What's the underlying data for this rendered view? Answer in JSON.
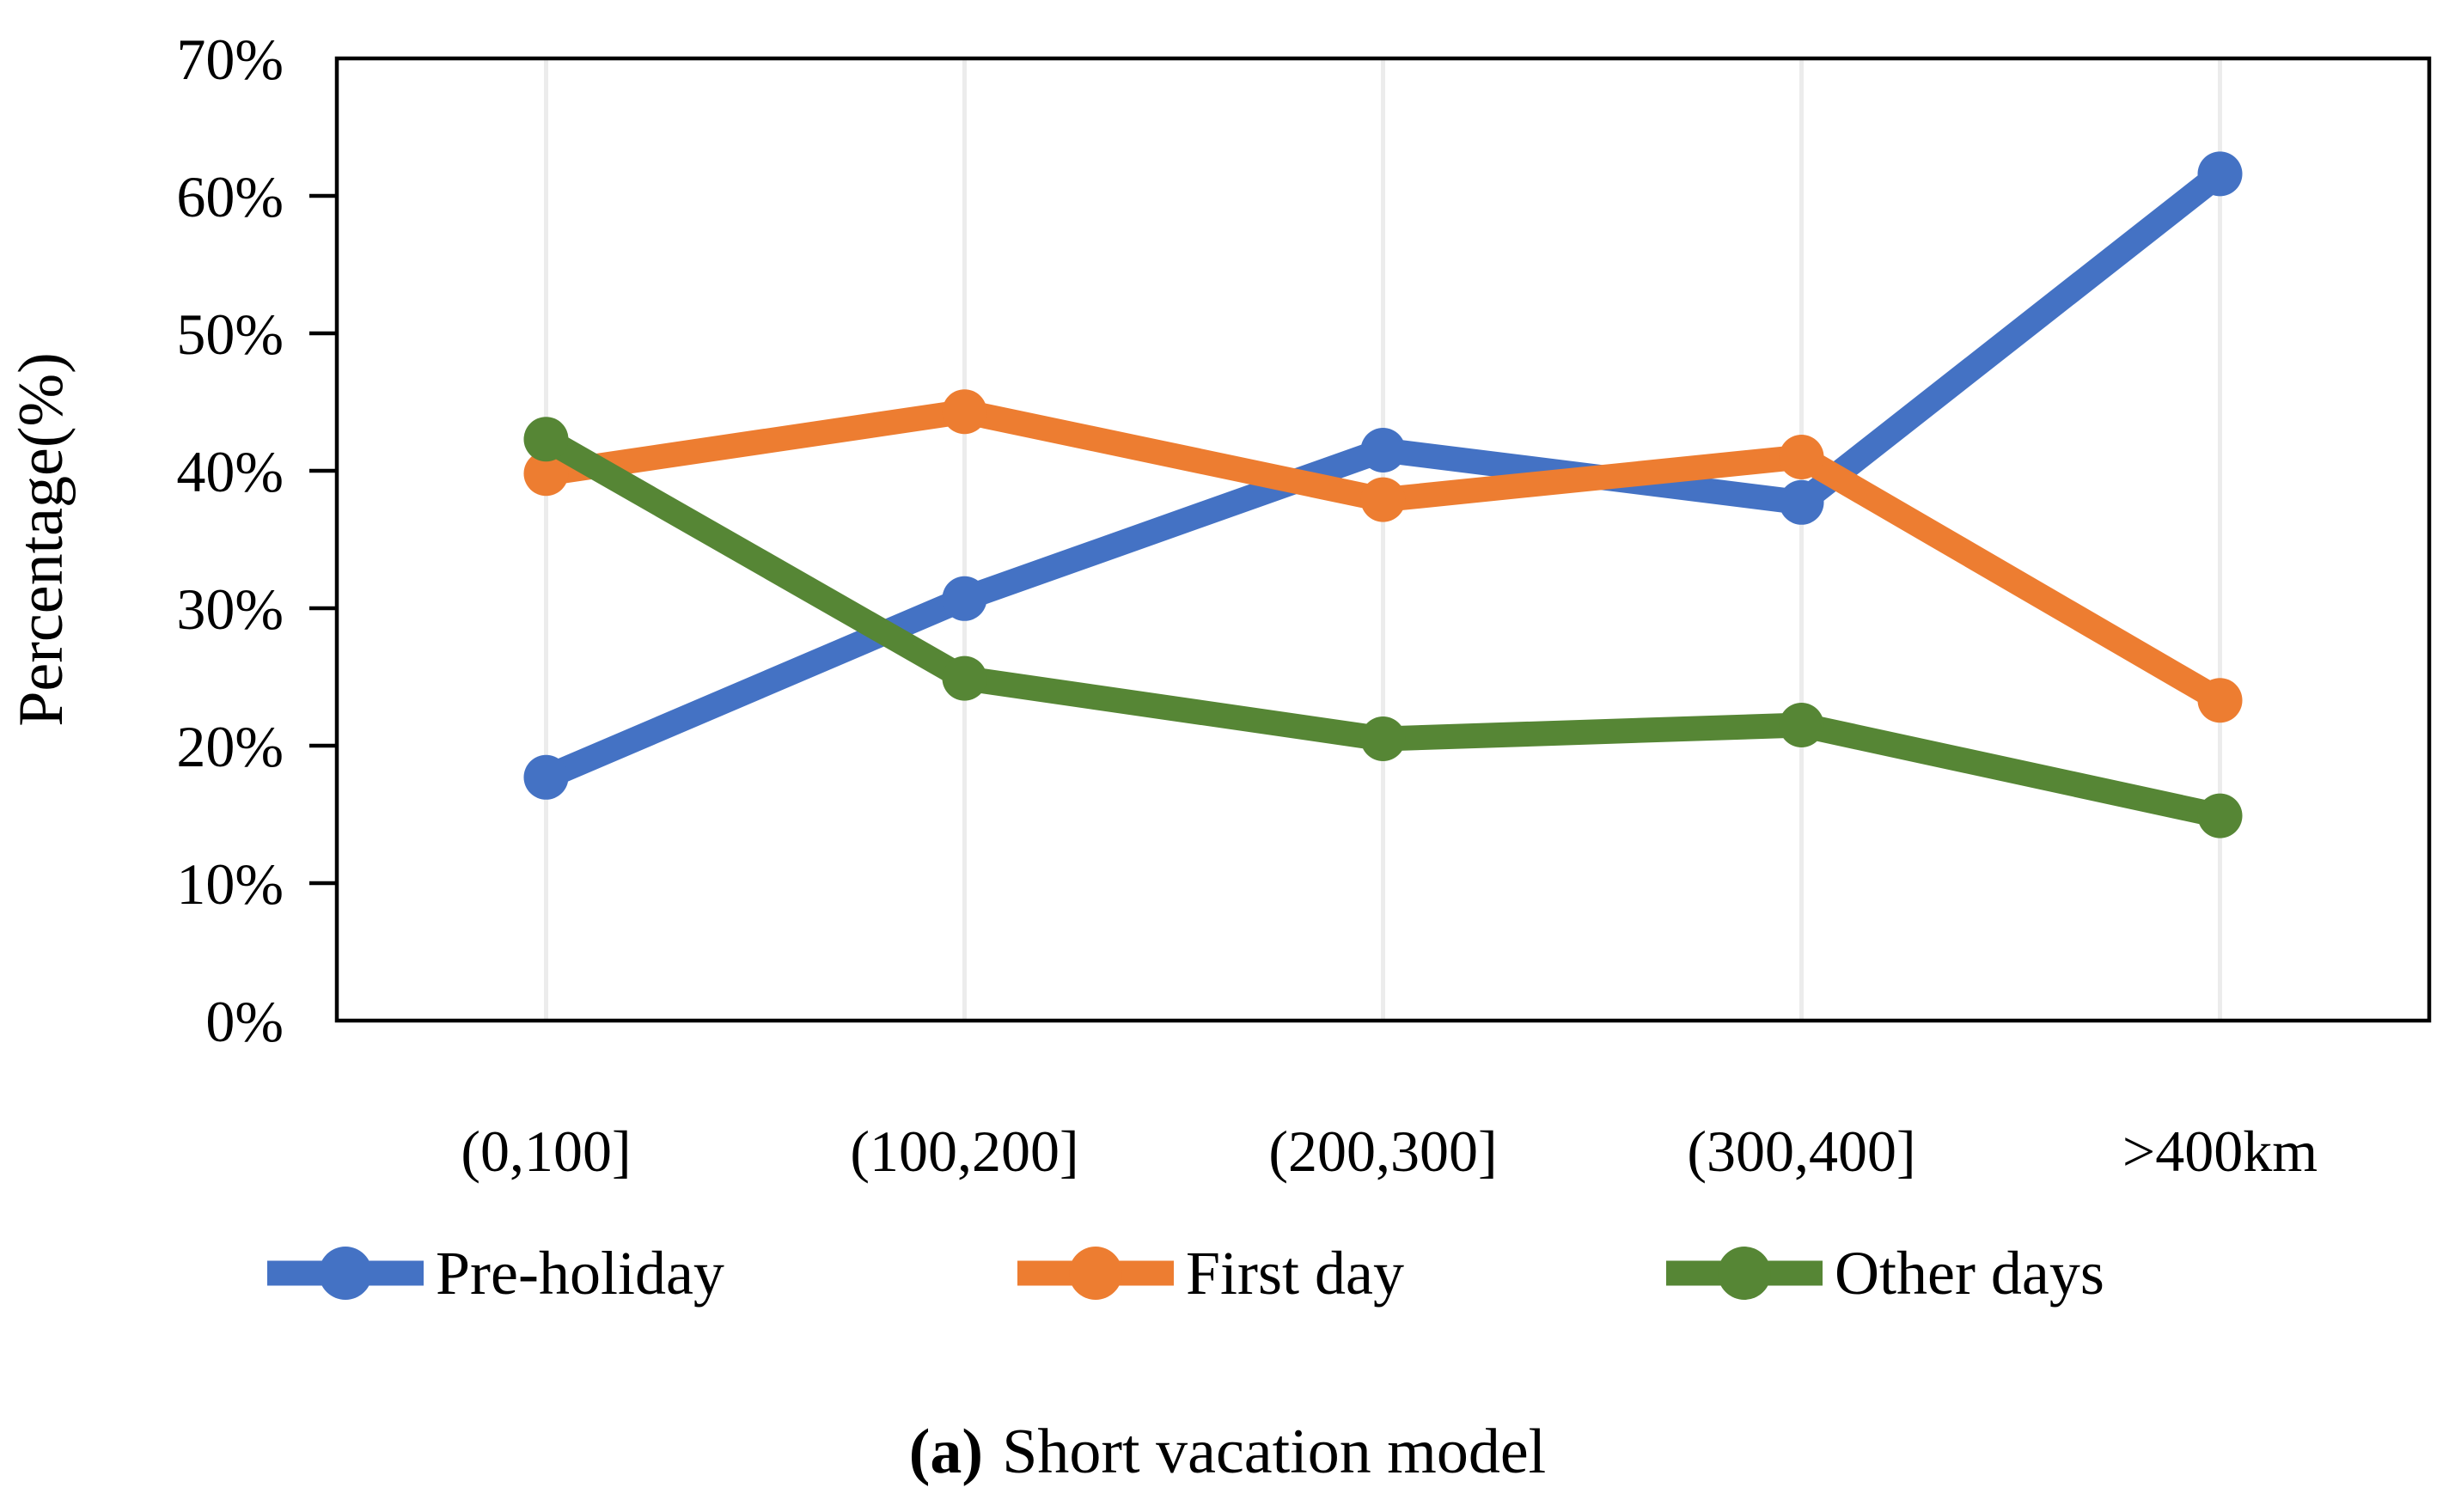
{
  "figure": {
    "caption_label": "(a)",
    "caption_text": "Short vacation model"
  },
  "chart_data": {
    "type": "line",
    "title": "",
    "xlabel": "",
    "ylabel": "Percentage(%)",
    "categories": [
      "(0,100]",
      "(100,200]",
      "(200,300]",
      "(300,400]",
      ">400km"
    ],
    "series": [
      {
        "name": "Pre-holiday",
        "color": "#4472C4",
        "values": [
          17.7,
          30.7,
          41.5,
          37.7,
          61.6
        ]
      },
      {
        "name": "First day",
        "color": "#ED7D31",
        "values": [
          39.8,
          44.3,
          37.9,
          41.0,
          23.3
        ]
      },
      {
        "name": "Other days",
        "color": "#568635",
        "values": [
          42.3,
          24.9,
          20.5,
          21.5,
          14.9
        ]
      }
    ],
    "y_axis": {
      "min": 0,
      "max": 70,
      "step": 10,
      "tick_labels": [
        "0%",
        "10%",
        "20%",
        "30%",
        "40%",
        "50%",
        "60%",
        "70%"
      ]
    },
    "grid": "vertical-only",
    "legend_position": "bottom",
    "colors": {
      "gridline": "#ECECEC",
      "axis": "#000000",
      "text": "#000000",
      "background": "#FFFFFF"
    }
  }
}
